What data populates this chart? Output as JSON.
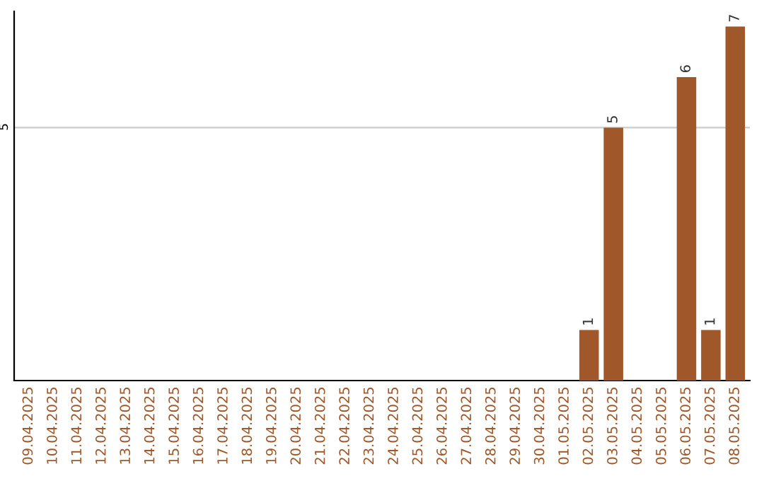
{
  "chart_data": {
    "type": "bar",
    "categories": [
      "09.04.2025",
      "10.04.2025",
      "11.04.2025",
      "12.04.2025",
      "13.04.2025",
      "14.04.2025",
      "15.04.2025",
      "16.04.2025",
      "17.04.2025",
      "18.04.2025",
      "19.04.2025",
      "20.04.2025",
      "21.04.2025",
      "22.04.2025",
      "23.04.2025",
      "24.04.2025",
      "25.04.2025",
      "26.04.2025",
      "27.04.2025",
      "28.04.2025",
      "29.04.2025",
      "30.04.2025",
      "01.05.2025",
      "02.05.2025",
      "03.05.2025",
      "04.05.2025",
      "05.05.2025",
      "06.05.2025",
      "07.05.2025",
      "08.05.2025"
    ],
    "values": [
      null,
      null,
      null,
      null,
      null,
      null,
      null,
      null,
      null,
      null,
      null,
      null,
      null,
      null,
      null,
      null,
      null,
      null,
      null,
      null,
      null,
      null,
      null,
      1,
      5,
      null,
      null,
      6,
      1,
      7
    ],
    "data_labels": true,
    "color": "#a0572a",
    "ylim": [
      0,
      7.3
    ],
    "yticks": [
      5
    ],
    "grid": "y"
  }
}
